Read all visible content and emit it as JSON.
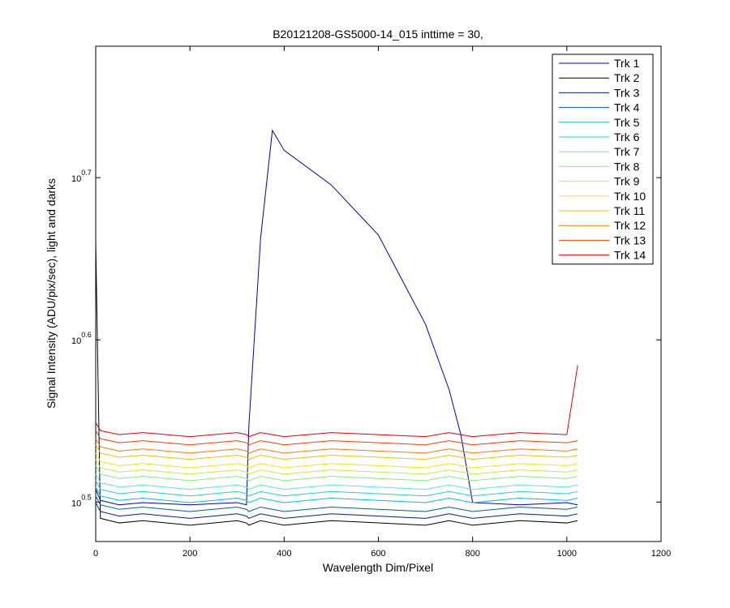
{
  "chart_data": {
    "type": "line",
    "title": "B20121208-GS5000-14_015 inttime = 30,",
    "x_label": "Wavelength Dim/Pixel",
    "y_label": "Signal Intensity (ADU/pix/sec), light and darks",
    "log_y": true,
    "legend_position": "upper right",
    "xlim": [
      0,
      1200
    ],
    "xticks": [
      0,
      200,
      400,
      600,
      800,
      1000,
      1200
    ],
    "ylim": [
      2.99,
      6.04
    ],
    "yticks": [
      {
        "value": 3.1623,
        "label": "10",
        "exponent": "0.5"
      },
      {
        "value": 3.9811,
        "label": "10",
        "exponent": "0.6"
      },
      {
        "value": 5.0119,
        "label": "10",
        "exponent": "0.7"
      }
    ],
    "x": [
      0,
      10,
      50,
      100,
      200,
      300,
      320,
      325,
      350,
      375,
      400,
      500,
      600,
      700,
      750,
      775,
      800,
      900,
      1000,
      1023
    ],
    "series": [
      {
        "name": "Trk 1",
        "color": "#0000b0",
        "values": [
          3.22,
          3.17,
          3.15,
          3.16,
          3.15,
          3.16,
          3.15,
          3.52,
          4.6,
          5.36,
          5.21,
          4.96,
          4.62,
          4.07,
          3.71,
          3.48,
          3.16,
          3.15,
          3.16,
          3.15
        ]
      },
      {
        "name": "Trk 2",
        "color": "#000000",
        "values": [
          4.58,
          3.09,
          3.07,
          3.08,
          3.06,
          3.08,
          3.07,
          3.06,
          3.08,
          3.07,
          3.06,
          3.08,
          3.07,
          3.06,
          3.08,
          3.07,
          3.06,
          3.08,
          3.07,
          3.08
        ]
      },
      {
        "name": "Trk 3",
        "color": "#00208f",
        "values": [
          3.16,
          3.12,
          3.1,
          3.11,
          3.09,
          3.11,
          3.1,
          3.09,
          3.11,
          3.1,
          3.09,
          3.11,
          3.1,
          3.09,
          3.11,
          3.1,
          3.09,
          3.11,
          3.1,
          3.11
        ]
      },
      {
        "name": "Trk 4",
        "color": "#005f8f",
        "values": [
          3.19,
          3.15,
          3.13,
          3.14,
          3.12,
          3.14,
          3.13,
          3.12,
          3.14,
          3.13,
          3.12,
          3.14,
          3.13,
          3.12,
          3.14,
          3.13,
          3.12,
          3.14,
          3.13,
          3.14
        ]
      },
      {
        "name": "Trk 5",
        "color": "#00bfcf",
        "values": [
          3.23,
          3.19,
          3.17,
          3.18,
          3.16,
          3.18,
          3.17,
          3.16,
          3.18,
          3.17,
          3.16,
          3.18,
          3.17,
          3.16,
          3.18,
          3.17,
          3.16,
          3.18,
          3.17,
          3.18
        ]
      },
      {
        "name": "Trk 6",
        "color": "#20d0d0",
        "values": [
          3.26,
          3.22,
          3.2,
          3.21,
          3.19,
          3.21,
          3.2,
          3.19,
          3.21,
          3.2,
          3.19,
          3.21,
          3.2,
          3.19,
          3.21,
          3.2,
          3.19,
          3.21,
          3.2,
          3.21
        ]
      },
      {
        "name": "Trk 7",
        "color": "#50e8e0",
        "values": [
          3.29,
          3.25,
          3.23,
          3.24,
          3.22,
          3.24,
          3.23,
          3.22,
          3.24,
          3.23,
          3.22,
          3.24,
          3.23,
          3.22,
          3.24,
          3.23,
          3.22,
          3.24,
          3.23,
          3.24
        ]
      },
      {
        "name": "Trk 8",
        "color": "#80f080",
        "values": [
          3.33,
          3.29,
          3.27,
          3.28,
          3.26,
          3.28,
          3.27,
          3.26,
          3.28,
          3.27,
          3.26,
          3.28,
          3.27,
          3.26,
          3.28,
          3.27,
          3.26,
          3.28,
          3.27,
          3.28
        ]
      },
      {
        "name": "Trk 9",
        "color": "#c0f040",
        "values": [
          3.36,
          3.32,
          3.3,
          3.31,
          3.29,
          3.31,
          3.3,
          3.29,
          3.31,
          3.3,
          3.29,
          3.31,
          3.3,
          3.29,
          3.31,
          3.3,
          3.29,
          3.31,
          3.3,
          3.31
        ]
      },
      {
        "name": "Trk 10",
        "color": "#eeee00",
        "values": [
          3.39,
          3.35,
          3.33,
          3.34,
          3.32,
          3.34,
          3.33,
          3.32,
          3.34,
          3.33,
          3.32,
          3.34,
          3.33,
          3.32,
          3.34,
          3.33,
          3.32,
          3.34,
          3.33,
          3.34
        ]
      },
      {
        "name": "Trk 11",
        "color": "#f0c000",
        "values": [
          3.43,
          3.39,
          3.37,
          3.38,
          3.36,
          3.38,
          3.37,
          3.36,
          3.38,
          3.37,
          3.36,
          3.38,
          3.37,
          3.36,
          3.38,
          3.37,
          3.36,
          3.38,
          3.37,
          3.38
        ]
      },
      {
        "name": "Trk 12",
        "color": "#f08000",
        "values": [
          3.46,
          3.42,
          3.4,
          3.41,
          3.39,
          3.41,
          3.4,
          3.39,
          3.41,
          3.4,
          3.39,
          3.41,
          3.4,
          3.39,
          3.41,
          3.4,
          3.39,
          3.41,
          3.4,
          3.41
        ]
      },
      {
        "name": "Trk 13",
        "color": "#f04000",
        "values": [
          3.5,
          3.46,
          3.44,
          3.45,
          3.43,
          3.45,
          3.44,
          3.43,
          3.45,
          3.44,
          3.43,
          3.45,
          3.44,
          3.43,
          3.45,
          3.44,
          3.43,
          3.45,
          3.44,
          3.45
        ]
      },
      {
        "name": "Trk 14",
        "color": "#e00000",
        "values": [
          3.54,
          3.5,
          3.48,
          3.49,
          3.47,
          3.49,
          3.48,
          3.47,
          3.49,
          3.48,
          3.47,
          3.49,
          3.48,
          3.47,
          3.49,
          3.48,
          3.47,
          3.49,
          3.48,
          3.84
        ]
      }
    ]
  }
}
